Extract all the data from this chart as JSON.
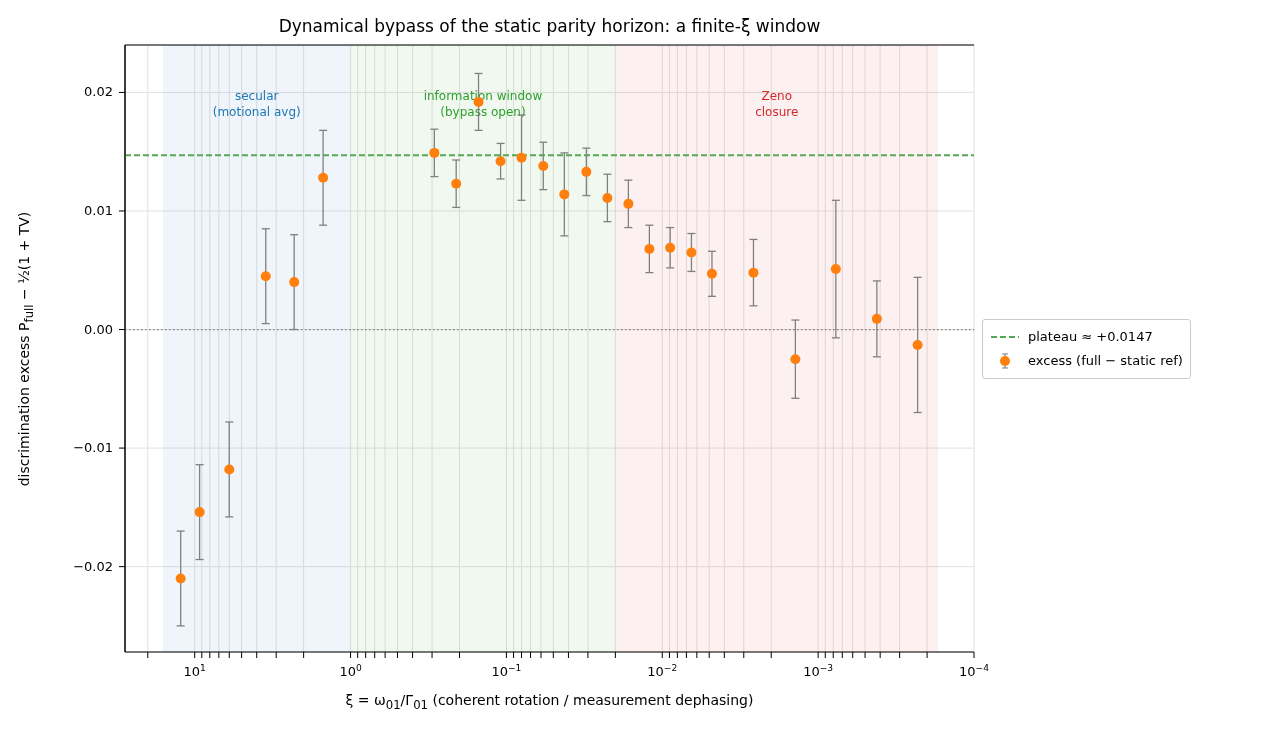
{
  "chart_data": {
    "type": "scatter",
    "title": "Dynamical bypass of the static parity horizon: a finite-ξ window",
    "xlabel": "ξ = ω$_{01}$/Γ$_{01}$  (coherent rotation / measurement dephasing)",
    "ylabel": "discrimination excess  P$_{full}$ − ½(1 + TV)",
    "x": [
      12.3,
      9.3,
      6.0,
      3.5,
      2.3,
      1.5,
      0.29,
      0.21,
      0.151,
      0.109,
      0.08,
      0.058,
      0.0425,
      0.0307,
      0.0225,
      0.0165,
      0.0121,
      0.0089,
      0.0065,
      0.0048,
      0.0026,
      0.0014,
      0.00077,
      0.00042,
      0.00023
    ],
    "series": [
      {
        "name": "excess (full − static ref)",
        "color": "#ff7f0e",
        "values": [
          -0.021,
          -0.0154,
          -0.0118,
          0.0045,
          0.004,
          0.0128,
          0.0149,
          0.0123,
          0.0192,
          0.0142,
          0.0145,
          0.0138,
          0.0114,
          0.0133,
          0.0111,
          0.0106,
          0.0068,
          0.0069,
          0.0065,
          0.0047,
          0.0048,
          -0.0025,
          0.0051,
          0.0009,
          -0.0013
        ],
        "errors": [
          0.004,
          0.004,
          0.004,
          0.004,
          0.004,
          0.004,
          0.002,
          0.002,
          0.0024,
          0.0015,
          0.0036,
          0.002,
          0.0035,
          0.002,
          0.002,
          0.002,
          0.002,
          0.0017,
          0.0016,
          0.0019,
          0.0028,
          0.0033,
          0.0058,
          0.0032,
          0.0057
        ]
      }
    ],
    "xlim": [
      28,
      0.0001
    ],
    "log": "x",
    "xticks": [
      {
        "value": 20,
        "label": null
      },
      {
        "value": 10,
        "label": "10$^{1}$"
      },
      {
        "value": 9,
        "label": null
      },
      {
        "value": 8,
        "label": null
      },
      {
        "value": 7,
        "label": null
      },
      {
        "value": 6,
        "label": null
      },
      {
        "value": 5,
        "label": null
      },
      {
        "value": 4,
        "label": null
      },
      {
        "value": 3,
        "label": null
      },
      {
        "value": 2,
        "label": null
      },
      {
        "value": 1,
        "label": "10$^{0}$"
      },
      {
        "value": 0.9,
        "label": null
      },
      {
        "value": 0.8,
        "label": null
      },
      {
        "value": 0.7,
        "label": null
      },
      {
        "value": 0.6,
        "label": null
      },
      {
        "value": 0.5,
        "label": null
      },
      {
        "value": 0.4,
        "label": null
      },
      {
        "value": 0.3,
        "label": null
      },
      {
        "value": 0.2,
        "label": null
      },
      {
        "value": 0.1,
        "label": "10$^{−1}$"
      },
      {
        "value": 0.09,
        "label": null
      },
      {
        "value": 0.08,
        "label": null
      },
      {
        "value": 0.07,
        "label": null
      },
      {
        "value": 0.06,
        "label": null
      },
      {
        "value": 0.05,
        "label": null
      },
      {
        "value": 0.04,
        "label": null
      },
      {
        "value": 0.03,
        "label": null
      },
      {
        "value": 0.02,
        "label": null
      },
      {
        "value": 0.01,
        "label": "10$^{−2}$"
      },
      {
        "value": 0.009,
        "label": null
      },
      {
        "value": 0.008,
        "label": null
      },
      {
        "value": 0.007,
        "label": null
      },
      {
        "value": 0.006,
        "label": null
      },
      {
        "value": 0.005,
        "label": null
      },
      {
        "value": 0.004,
        "label": null
      },
      {
        "value": 0.003,
        "label": null
      },
      {
        "value": 0.002,
        "label": null
      },
      {
        "value": 0.001,
        "label": "10$^{−3}$"
      },
      {
        "value": 0.0009,
        "label": null
      },
      {
        "value": 0.0008,
        "label": null
      },
      {
        "value": 0.0007,
        "label": null
      },
      {
        "value": 0.0006,
        "label": null
      },
      {
        "value": 0.0005,
        "label": null
      },
      {
        "value": 0.0004,
        "label": null
      },
      {
        "value": 0.0003,
        "label": null
      },
      {
        "value": 0.0002,
        "label": null
      },
      {
        "value": 0.0001,
        "label": "10$^{−4}$"
      }
    ],
    "ylim": [
      -0.0272,
      0.024
    ],
    "yticks": [
      {
        "value": -0.02,
        "label": "−0.02"
      },
      {
        "value": -0.01,
        "label": "−0.01"
      },
      {
        "value": 0,
        "label": "0.00"
      },
      {
        "value": 0.01,
        "label": "0.01"
      },
      {
        "value": 0.02,
        "label": "0.02"
      }
    ],
    "ref_lines": [
      {
        "axis": "y",
        "value": 0.0147,
        "label": "plateau ≈ +0.0147",
        "color": "#55a955",
        "line_style": "dashed"
      },
      {
        "axis": "y",
        "value": 0,
        "color": "#808080",
        "line_style": "dotted"
      }
    ],
    "bands": [
      {
        "axis": "x",
        "from": 16,
        "to": 1,
        "label": "secular\n(motional avg)",
        "color": "#1f77b4"
      },
      {
        "axis": "x",
        "from": 1,
        "to": 0.02,
        "label": "information window\n(bypass open)",
        "color": "#2ca02c"
      },
      {
        "axis": "x",
        "from": 0.02,
        "to": 0.00017,
        "label": "Zeno\nclosure",
        "color": "#d62728"
      }
    ],
    "grid": true,
    "legend": "right",
    "marker": "circle"
  }
}
